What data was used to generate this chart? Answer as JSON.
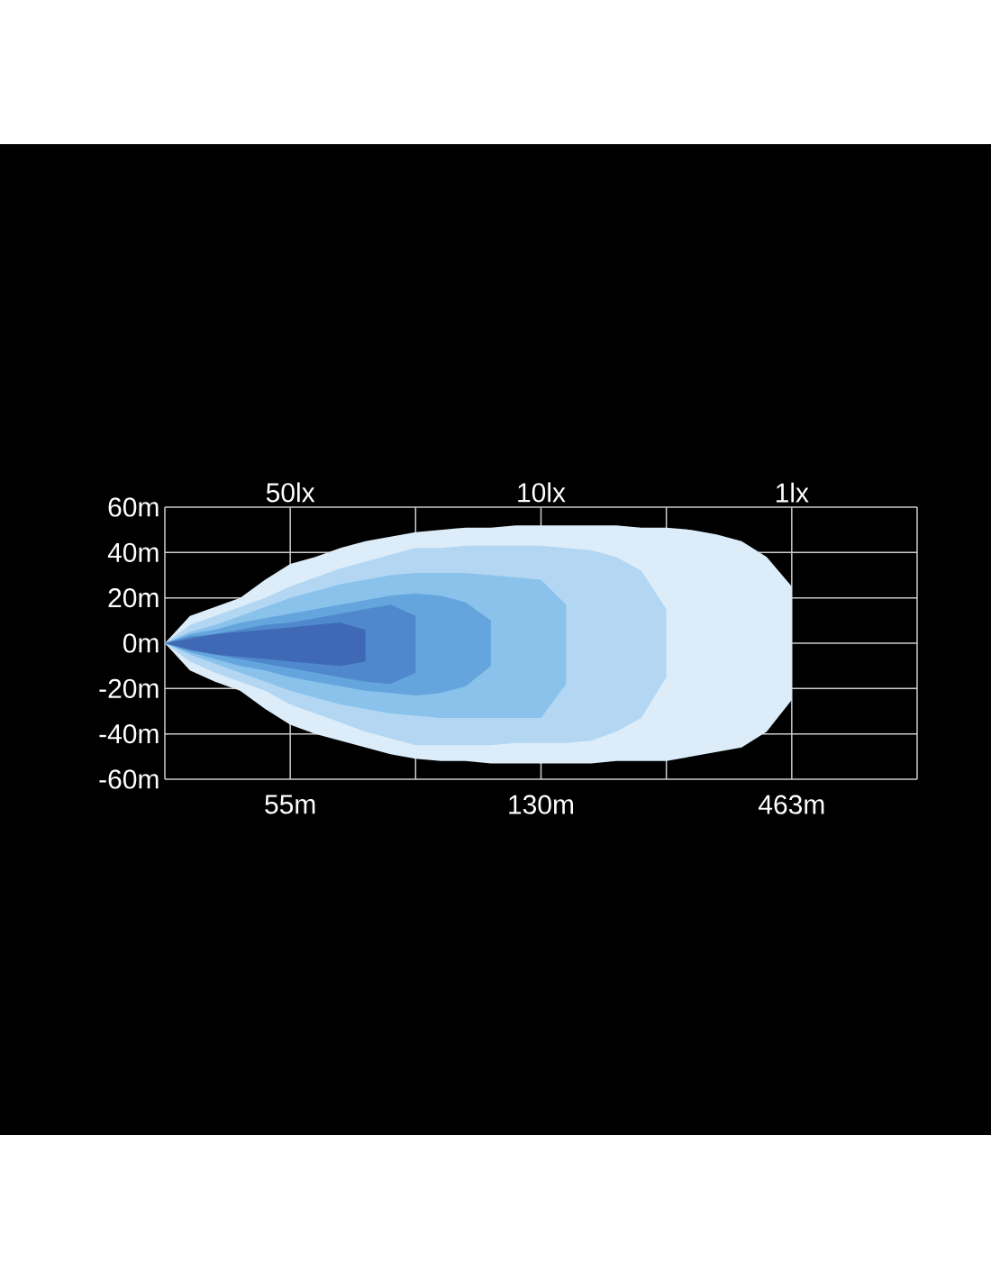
{
  "chart_data": {
    "type": "area",
    "categories": [
      null,
      null,
      null,
      null,
      null,
      "55m",
      null,
      null,
      null,
      null,
      null,
      null,
      null,
      null,
      null,
      "130m",
      null,
      null,
      null,
      null,
      null,
      null,
      null,
      null,
      null,
      "463m",
      null,
      null,
      null,
      null,
      null
    ],
    "annotations": [
      "50lx",
      "10lx",
      "1lx"
    ],
    "ylim": [
      -60,
      60
    ],
    "yticks": [
      {
        "value": -60,
        "label": "-60m"
      },
      {
        "value": -40,
        "label": "-40m"
      },
      {
        "value": -20,
        "label": "-20m"
      },
      {
        "value": 0,
        "label": "0m"
      },
      {
        "value": 20,
        "label": "20m"
      },
      {
        "value": 40,
        "label": "40m"
      },
      {
        "value": 60,
        "label": "60m"
      }
    ],
    "grid": true,
    "series": [
      {
        "color": "#dcedf9",
        "values": [
          0,
          12,
          16,
          20,
          28,
          35,
          38,
          42,
          45,
          47,
          49,
          50,
          51,
          51,
          52,
          52,
          52,
          52,
          52,
          51,
          51,
          50,
          48,
          45,
          38,
          25,
          null,
          null,
          null,
          null,
          null
        ]
      },
      {
        "color": "#dcedf9",
        "values": [
          0,
          -12,
          -17,
          -21,
          -29,
          -36,
          -40,
          -43,
          -46,
          -49,
          -51,
          -52,
          -52,
          -53,
          -53,
          -53,
          -53,
          -53,
          -52,
          -52,
          -52,
          -50,
          -48,
          -46,
          -39,
          -25,
          null,
          null,
          null,
          null,
          null
        ]
      },
      {
        "color": "#b3d7f2",
        "values": [
          0,
          8,
          12,
          16,
          20,
          25,
          29,
          33,
          36,
          39,
          42,
          42,
          43,
          43,
          43,
          43,
          42,
          41,
          38,
          32,
          15,
          null,
          null,
          null,
          null,
          null,
          null,
          null,
          null,
          null,
          null
        ]
      },
      {
        "color": "#b3d7f2",
        "values": [
          0,
          -8,
          -13,
          -17,
          -21,
          -27,
          -31,
          -35,
          -39,
          -42,
          -45,
          -45,
          -45,
          -45,
          -44,
          -44,
          -44,
          -43,
          -39,
          -33,
          -15,
          null,
          null,
          null,
          null,
          null,
          null,
          null,
          null,
          null,
          null
        ]
      },
      {
        "color": "#8ac2ec",
        "values": [
          0,
          5,
          8,
          12,
          16,
          20,
          23,
          26,
          28,
          30,
          31,
          31,
          31,
          30,
          29,
          28,
          17,
          null,
          null,
          null,
          null,
          null,
          null,
          null,
          null,
          null,
          null,
          null,
          null,
          null,
          null
        ]
      },
      {
        "color": "#8ac2ec",
        "values": [
          0,
          -5,
          -9,
          -13,
          -17,
          -21,
          -24,
          -27,
          -29,
          -31,
          -32,
          -33,
          -33,
          -33,
          -33,
          -33,
          -18,
          null,
          null,
          null,
          null,
          null,
          null,
          null,
          null,
          null,
          null,
          null,
          null,
          null,
          null
        ]
      },
      {
        "color": "#64a5dd",
        "values": [
          0,
          4,
          6,
          9,
          11,
          13,
          15,
          17,
          19,
          21,
          22,
          21,
          18,
          10,
          null,
          null,
          null,
          null,
          null,
          null,
          null,
          null,
          null,
          null,
          null,
          null,
          null,
          null,
          null,
          null,
          null
        ]
      },
      {
        "color": "#64a5dd",
        "values": [
          0,
          -4,
          -7,
          -10,
          -12,
          -15,
          -17,
          -19,
          -21,
          -22,
          -23,
          -22,
          -19,
          -10,
          null,
          null,
          null,
          null,
          null,
          null,
          null,
          null,
          null,
          null,
          null,
          null,
          null,
          null,
          null,
          null,
          null
        ]
      },
      {
        "color": "#4f88cc",
        "values": [
          0,
          3,
          4,
          6,
          8,
          9,
          11,
          13,
          15,
          17,
          12,
          null,
          null,
          null,
          null,
          null,
          null,
          null,
          null,
          null,
          null,
          null,
          null,
          null,
          null,
          null,
          null,
          null,
          null,
          null,
          null
        ]
      },
      {
        "color": "#4f88cc",
        "values": [
          0,
          -3,
          -5,
          -7,
          -9,
          -11,
          -13,
          -15,
          -17,
          -18,
          -13,
          null,
          null,
          null,
          null,
          null,
          null,
          null,
          null,
          null,
          null,
          null,
          null,
          null,
          null,
          null,
          null,
          null,
          null,
          null,
          null
        ]
      },
      {
        "color": "#3f69b4",
        "values": [
          0,
          2,
          4,
          5,
          6,
          7,
          8,
          9,
          6,
          null,
          null,
          null,
          null,
          null,
          null,
          null,
          null,
          null,
          null,
          null,
          null,
          null,
          null,
          null,
          null,
          null,
          null,
          null,
          null,
          null,
          null
        ]
      },
      {
        "color": "#3f69b4",
        "values": [
          0,
          -3,
          -5,
          -6,
          -7,
          -8,
          -9,
          -10,
          -8,
          null,
          null,
          null,
          null,
          null,
          null,
          null,
          null,
          null,
          null,
          null,
          null,
          null,
          null,
          null,
          null,
          null,
          null,
          null,
          null,
          null,
          null
        ]
      }
    ]
  }
}
